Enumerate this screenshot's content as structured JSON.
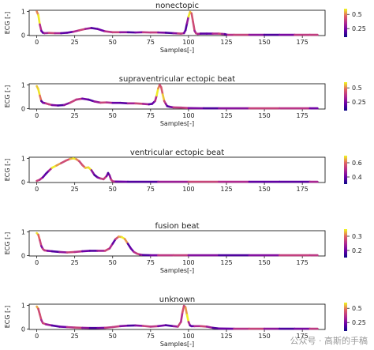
{
  "watermark": "公众号 · 高斯的手稿",
  "chart_data": [
    {
      "type": "line",
      "title": "nonectopic",
      "xlabel": "Samples[-]",
      "ylabel": "ECG [-]",
      "xlim": [
        -5,
        190
      ],
      "ylim": [
        -0.02,
        1.05
      ],
      "xticks": [
        0,
        25,
        50,
        75,
        100,
        125,
        150,
        175
      ],
      "yticks": [
        0,
        1
      ],
      "colorbar": {
        "range": [
          0.1,
          0.6
        ],
        "ticks": [
          0.5,
          0.25
        ],
        "colormap": "plasma"
      },
      "x": [
        0,
        1,
        2,
        3,
        4,
        5,
        8,
        12,
        16,
        20,
        24,
        28,
        32,
        36,
        40,
        45,
        50,
        55,
        60,
        65,
        70,
        75,
        80,
        85,
        90,
        93,
        95,
        97,
        98,
        99,
        100,
        101,
        102,
        103,
        104,
        105,
        106,
        108,
        112,
        116,
        120,
        122,
        124,
        125,
        126,
        130,
        140,
        150,
        160,
        170,
        180,
        185
      ],
      "values": [
        1.0,
        0.85,
        0.45,
        0.18,
        0.1,
        0.08,
        0.09,
        0.08,
        0.08,
        0.1,
        0.14,
        0.2,
        0.26,
        0.3,
        0.26,
        0.16,
        0.12,
        0.12,
        0.12,
        0.11,
        0.12,
        0.11,
        0.11,
        0.1,
        0.08,
        0.07,
        0.06,
        0.08,
        0.2,
        0.5,
        0.78,
        0.98,
        0.92,
        0.55,
        0.18,
        0.07,
        0.05,
        0.06,
        0.06,
        0.06,
        0.06,
        0.05,
        0.04,
        0.02,
        0.01,
        0.01,
        0.01,
        0.01,
        0.01,
        0.01,
        0.01,
        0.01
      ]
    },
    {
      "type": "line",
      "title": "supraventricular ectopic beat",
      "xlabel": "Samples[-]",
      "ylabel": "ECG [-]",
      "xlim": [
        -5,
        190
      ],
      "ylim": [
        -0.02,
        1.05
      ],
      "xticks": [
        0,
        25,
        50,
        75,
        100,
        125,
        150,
        175
      ],
      "yticks": [
        0,
        1
      ],
      "colorbar": {
        "range": [
          0.1,
          0.6
        ],
        "ticks": [
          0.5,
          0.25
        ],
        "colormap": "plasma"
      },
      "x": [
        0,
        1,
        2,
        3,
        4,
        6,
        8,
        10,
        14,
        18,
        22,
        26,
        30,
        34,
        38,
        42,
        46,
        50,
        55,
        60,
        65,
        70,
        74,
        76,
        78,
        79,
        80,
        81,
        82,
        83,
        84,
        85,
        86,
        88,
        90,
        95,
        100,
        110,
        120,
        140,
        160,
        180,
        185
      ],
      "values": [
        0.95,
        0.82,
        0.55,
        0.32,
        0.25,
        0.22,
        0.18,
        0.15,
        0.13,
        0.15,
        0.25,
        0.38,
        0.42,
        0.38,
        0.3,
        0.25,
        0.26,
        0.24,
        0.24,
        0.22,
        0.22,
        0.2,
        0.18,
        0.2,
        0.32,
        0.55,
        0.85,
        1.0,
        0.9,
        0.6,
        0.32,
        0.2,
        0.1,
        0.07,
        0.05,
        0.04,
        0.02,
        0.01,
        0.01,
        0.01,
        0.01,
        0.01,
        0.01
      ]
    },
    {
      "type": "line",
      "title": "ventricular ectopic beat",
      "xlabel": "",
      "ylabel": "ECG [-]",
      "xlim": [
        -5,
        190
      ],
      "ylim": [
        -0.02,
        1.05
      ],
      "xticks": [
        0,
        25,
        50,
        75,
        100,
        125,
        150,
        175
      ],
      "yticks": [
        0,
        1
      ],
      "colorbar": {
        "range": [
          0.3,
          0.7
        ],
        "ticks": [
          0.6,
          0.4
        ],
        "colormap": "plasma"
      },
      "x": [
        0,
        2,
        4,
        6,
        8,
        10,
        13,
        16,
        19,
        22,
        24,
        26,
        28,
        30,
        32,
        34,
        36,
        38,
        40,
        42,
        44,
        46,
        47,
        48,
        49,
        50,
        52,
        60,
        80,
        100,
        120,
        140,
        160,
        180,
        185
      ],
      "values": [
        0.05,
        0.1,
        0.2,
        0.35,
        0.48,
        0.6,
        0.7,
        0.8,
        0.9,
        0.98,
        1.0,
        0.97,
        0.88,
        0.72,
        0.6,
        0.62,
        0.5,
        0.3,
        0.2,
        0.15,
        0.12,
        0.25,
        0.38,
        0.28,
        0.1,
        0.03,
        0.02,
        0.01,
        0.01,
        0.01,
        0.01,
        0.01,
        0.01,
        0.01,
        0.01
      ]
    },
    {
      "type": "line",
      "title": "fusion beat",
      "xlabel": "Samples[-]",
      "ylabel": "ECG [-]",
      "xlim": [
        -5,
        190
      ],
      "ylim": [
        -0.02,
        1.05
      ],
      "xticks": [
        0,
        25,
        50,
        75,
        100,
        125,
        150,
        175
      ],
      "yticks": [
        0,
        1
      ],
      "colorbar": {
        "range": [
          0.15,
          0.35
        ],
        "ticks": [
          0.3,
          0.2
        ],
        "colormap": "plasma"
      },
      "x": [
        0,
        1,
        2,
        3,
        4,
        5,
        7,
        10,
        15,
        20,
        25,
        30,
        35,
        40,
        45,
        48,
        50,
        52,
        54,
        56,
        58,
        60,
        62,
        64,
        66,
        68,
        70,
        75,
        80,
        90,
        100,
        120,
        140,
        160,
        180,
        185
      ],
      "values": [
        0.95,
        0.88,
        0.65,
        0.4,
        0.28,
        0.22,
        0.2,
        0.18,
        0.15,
        0.13,
        0.15,
        0.18,
        0.2,
        0.2,
        0.2,
        0.3,
        0.5,
        0.7,
        0.8,
        0.78,
        0.7,
        0.5,
        0.3,
        0.15,
        0.08,
        0.04,
        0.02,
        0.01,
        0.01,
        0.01,
        0.01,
        0.01,
        0.01,
        0.01,
        0.01,
        0.01
      ]
    },
    {
      "type": "line",
      "title": "unknown",
      "xlabel": "Samples[-]",
      "ylabel": "ECG [-]",
      "xlim": [
        -5,
        190
      ],
      "ylim": [
        -0.02,
        1.05
      ],
      "xticks": [
        0,
        25,
        50,
        75,
        100,
        125,
        150,
        175
      ],
      "yticks": [
        0,
        1
      ],
      "colorbar": {
        "range": [
          0.1,
          0.6
        ],
        "ticks": [
          0.5,
          0.25
        ],
        "colormap": "plasma"
      },
      "x": [
        0,
        1,
        2,
        3,
        4,
        6,
        10,
        15,
        20,
        25,
        30,
        35,
        40,
        45,
        50,
        55,
        60,
        65,
        70,
        75,
        80,
        85,
        90,
        93,
        95,
        96,
        97,
        98,
        99,
        100,
        101,
        102,
        104,
        108,
        112,
        116,
        120,
        130,
        140,
        150,
        160,
        170,
        180,
        185
      ],
      "values": [
        0.95,
        0.85,
        0.62,
        0.38,
        0.25,
        0.2,
        0.15,
        0.1,
        0.08,
        0.06,
        0.05,
        0.04,
        0.04,
        0.05,
        0.08,
        0.12,
        0.14,
        0.15,
        0.13,
        0.1,
        0.12,
        0.16,
        0.12,
        0.1,
        0.3,
        0.7,
        0.98,
        0.92,
        0.6,
        0.3,
        0.15,
        0.12,
        0.12,
        0.12,
        0.1,
        0.05,
        0.02,
        0.01,
        0.01,
        0.01,
        0.01,
        0.01,
        0.01,
        0.01
      ]
    }
  ]
}
